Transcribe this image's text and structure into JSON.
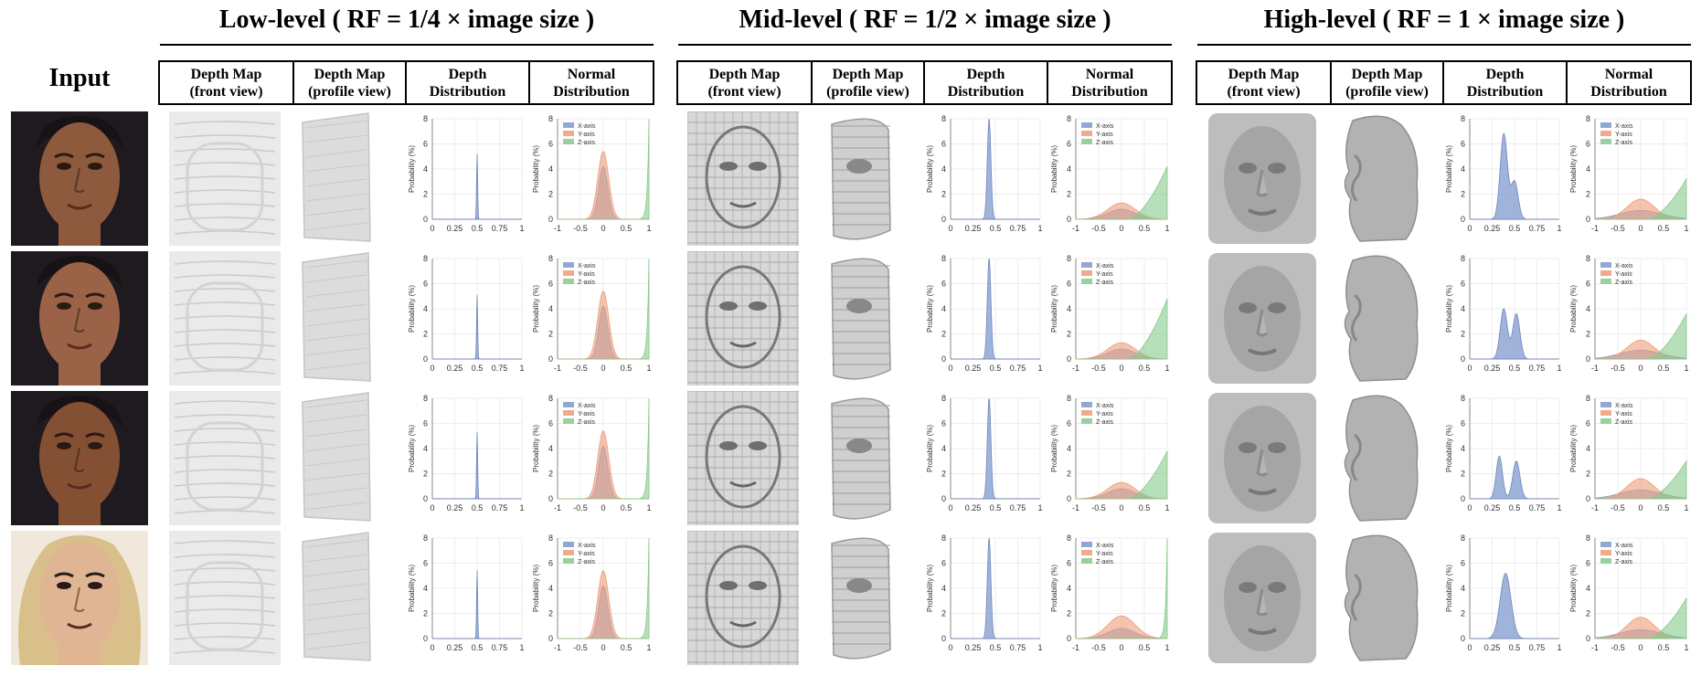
{
  "input_label": "Input",
  "groups": [
    {
      "id": "low",
      "title": "Low-level  ( RF = 1/4 × image size )"
    },
    {
      "id": "mid",
      "title": "Mid-level  ( RF = 1/2  × image size )"
    },
    {
      "id": "high",
      "title": "High-level  ( RF = 1 × image size )"
    }
  ],
  "column_headers": [
    {
      "line1": "Depth Map",
      "line2": "(front view)"
    },
    {
      "line1": "Depth Map",
      "line2": "(profile view)"
    },
    {
      "line1": "Depth",
      "line2": "Distribution"
    },
    {
      "line1": "Normal",
      "line2": "Distribution"
    }
  ],
  "plot_labels": {
    "ylabel": "Probability (%)",
    "depth_yticks": [
      "0",
      "2",
      "4",
      "6",
      "8"
    ],
    "depth_xticks": [
      "0",
      "0.25",
      "0.5",
      "0.75",
      "1"
    ],
    "normal_yticks": [
      "0",
      "2",
      "4",
      "6",
      "8"
    ],
    "normal_xticks": [
      "-1",
      "-0.5",
      "0",
      "0.5",
      "1"
    ],
    "legend": [
      "X-axis",
      "Y-axis",
      "Z-axis"
    ]
  },
  "colors": {
    "depth_hist": "#8fa6d4",
    "x_axis": "#7f98cc",
    "y_axis": "#ec9c78",
    "z_axis": "#86c98c",
    "skin_row1": "#8e5a3e",
    "skin_row2": "#9a6246",
    "skin_row3": "#845033",
    "skin_row4": "#e0b593"
  },
  "chart_data": [
    {
      "type": "area",
      "level": "low",
      "row": 1,
      "kind": "depth",
      "peaks": [
        {
          "mean": 0.5,
          "sd": 0.006,
          "peak": 5.2
        }
      ],
      "xlim": [
        0,
        1
      ],
      "ylim": [
        0,
        8
      ]
    },
    {
      "type": "area",
      "level": "low",
      "row": 1,
      "kind": "normal",
      "series": [
        {
          "name": "X-axis",
          "mean": 0,
          "sd": 0.1,
          "peak": 4.2
        },
        {
          "name": "Y-axis",
          "mean": 0,
          "sd": 0.12,
          "peak": 5.4
        },
        {
          "name": "Z-axis",
          "mode": 1,
          "peak": 8
        }
      ],
      "xlim": [
        -1,
        1
      ],
      "ylim": [
        0,
        8
      ]
    },
    {
      "type": "area",
      "level": "mid",
      "row": 1,
      "kind": "depth",
      "peaks": [
        {
          "mean": 0.43,
          "sd": 0.02,
          "peak": 8
        }
      ],
      "xlim": [
        0,
        1
      ],
      "ylim": [
        0,
        8
      ]
    },
    {
      "type": "area",
      "level": "mid",
      "row": 1,
      "kind": "normal",
      "series": [
        {
          "name": "X-axis",
          "mean": 0,
          "sd": 0.3,
          "peak": 0.8
        },
        {
          "name": "Y-axis",
          "mean": 0,
          "sd": 0.3,
          "peak": 1.3
        },
        {
          "name": "Z-axis",
          "mode": 1,
          "peak": 4.2
        }
      ],
      "xlim": [
        -1,
        1
      ],
      "ylim": [
        0,
        8
      ]
    },
    {
      "type": "area",
      "level": "high",
      "row": 1,
      "kind": "depth",
      "peaks": [
        {
          "mean": 0.38,
          "sd": 0.04,
          "peak": 6.8
        },
        {
          "mean": 0.5,
          "sd": 0.04,
          "peak": 3
        }
      ],
      "xlim": [
        0,
        1
      ],
      "ylim": [
        0,
        8
      ]
    },
    {
      "type": "area",
      "level": "high",
      "row": 1,
      "kind": "normal",
      "series": [
        {
          "name": "X-axis",
          "mean": 0,
          "sd": 0.45,
          "peak": 0.7
        },
        {
          "name": "Y-axis",
          "mean": 0,
          "sd": 0.3,
          "peak": 1.6
        },
        {
          "name": "Z-axis",
          "mode": 1,
          "peak": 3.2
        }
      ],
      "xlim": [
        -1,
        1
      ],
      "ylim": [
        0,
        8
      ]
    },
    {
      "type": "area",
      "level": "low",
      "row": 2,
      "kind": "depth",
      "peaks": [
        {
          "mean": 0.5,
          "sd": 0.006,
          "peak": 5.1
        }
      ],
      "xlim": [
        0,
        1
      ],
      "ylim": [
        0,
        8
      ]
    },
    {
      "type": "area",
      "level": "low",
      "row": 2,
      "kind": "normal",
      "series": [
        {
          "name": "X-axis",
          "mean": 0,
          "sd": 0.1,
          "peak": 4.2
        },
        {
          "name": "Y-axis",
          "mean": 0,
          "sd": 0.12,
          "peak": 5.4
        },
        {
          "name": "Z-axis",
          "mode": 1,
          "peak": 8
        }
      ],
      "xlim": [
        -1,
        1
      ],
      "ylim": [
        0,
        8
      ]
    },
    {
      "type": "area",
      "level": "mid",
      "row": 2,
      "kind": "depth",
      "peaks": [
        {
          "mean": 0.43,
          "sd": 0.02,
          "peak": 8
        }
      ],
      "xlim": [
        0,
        1
      ],
      "ylim": [
        0,
        8
      ]
    },
    {
      "type": "area",
      "level": "mid",
      "row": 2,
      "kind": "normal",
      "series": [
        {
          "name": "X-axis",
          "mean": 0,
          "sd": 0.3,
          "peak": 0.8
        },
        {
          "name": "Y-axis",
          "mean": 0,
          "sd": 0.3,
          "peak": 1.3
        },
        {
          "name": "Z-axis",
          "mode": 1,
          "peak": 4.8
        }
      ],
      "xlim": [
        -1,
        1
      ],
      "ylim": [
        0,
        8
      ]
    },
    {
      "type": "area",
      "level": "high",
      "row": 2,
      "kind": "depth",
      "peaks": [
        {
          "mean": 0.38,
          "sd": 0.04,
          "peak": 4
        },
        {
          "mean": 0.52,
          "sd": 0.04,
          "peak": 3.6
        }
      ],
      "xlim": [
        0,
        1
      ],
      "ylim": [
        0,
        8
      ]
    },
    {
      "type": "area",
      "level": "high",
      "row": 2,
      "kind": "normal",
      "series": [
        {
          "name": "X-axis",
          "mean": 0,
          "sd": 0.45,
          "peak": 0.7
        },
        {
          "name": "Y-axis",
          "mean": 0,
          "sd": 0.3,
          "peak": 1.5
        },
        {
          "name": "Z-axis",
          "mode": 1,
          "peak": 3.6
        }
      ],
      "xlim": [
        -1,
        1
      ],
      "ylim": [
        0,
        8
      ]
    },
    {
      "type": "area",
      "level": "low",
      "row": 3,
      "kind": "depth",
      "peaks": [
        {
          "mean": 0.5,
          "sd": 0.006,
          "peak": 5.3
        }
      ],
      "xlim": [
        0,
        1
      ],
      "ylim": [
        0,
        8
      ]
    },
    {
      "type": "area",
      "level": "low",
      "row": 3,
      "kind": "normal",
      "series": [
        {
          "name": "X-axis",
          "mean": 0,
          "sd": 0.1,
          "peak": 4.2
        },
        {
          "name": "Y-axis",
          "mean": 0,
          "sd": 0.12,
          "peak": 5.4
        },
        {
          "name": "Z-axis",
          "mode": 1,
          "peak": 8
        }
      ],
      "xlim": [
        -1,
        1
      ],
      "ylim": [
        0,
        8
      ]
    },
    {
      "type": "area",
      "level": "mid",
      "row": 3,
      "kind": "depth",
      "peaks": [
        {
          "mean": 0.43,
          "sd": 0.02,
          "peak": 8
        }
      ],
      "xlim": [
        0,
        1
      ],
      "ylim": [
        0,
        8
      ]
    },
    {
      "type": "area",
      "level": "mid",
      "row": 3,
      "kind": "normal",
      "series": [
        {
          "name": "X-axis",
          "mean": 0,
          "sd": 0.3,
          "peak": 0.8
        },
        {
          "name": "Y-axis",
          "mean": 0,
          "sd": 0.3,
          "peak": 1.3
        },
        {
          "name": "Z-axis",
          "mode": 1,
          "peak": 3.8
        }
      ],
      "xlim": [
        -1,
        1
      ],
      "ylim": [
        0,
        8
      ]
    },
    {
      "type": "area",
      "level": "high",
      "row": 3,
      "kind": "depth",
      "peaks": [
        {
          "mean": 0.33,
          "sd": 0.035,
          "peak": 3.4
        },
        {
          "mean": 0.52,
          "sd": 0.04,
          "peak": 3
        }
      ],
      "xlim": [
        0,
        1
      ],
      "ylim": [
        0,
        8
      ]
    },
    {
      "type": "area",
      "level": "high",
      "row": 3,
      "kind": "normal",
      "series": [
        {
          "name": "X-axis",
          "mean": 0,
          "sd": 0.45,
          "peak": 0.7
        },
        {
          "name": "Y-axis",
          "mean": 0,
          "sd": 0.3,
          "peak": 1.6
        },
        {
          "name": "Z-axis",
          "mode": 1,
          "peak": 3
        }
      ],
      "xlim": [
        -1,
        1
      ],
      "ylim": [
        0,
        8
      ]
    },
    {
      "type": "area",
      "level": "low",
      "row": 4,
      "kind": "depth",
      "peaks": [
        {
          "mean": 0.5,
          "sd": 0.006,
          "peak": 5.4
        }
      ],
      "xlim": [
        0,
        1
      ],
      "ylim": [
        0,
        8
      ]
    },
    {
      "type": "area",
      "level": "low",
      "row": 4,
      "kind": "normal",
      "series": [
        {
          "name": "X-axis",
          "mean": 0,
          "sd": 0.1,
          "peak": 4.2
        },
        {
          "name": "Y-axis",
          "mean": 0,
          "sd": 0.12,
          "peak": 5.4
        },
        {
          "name": "Z-axis",
          "mode": 1,
          "peak": 8
        }
      ],
      "xlim": [
        -1,
        1
      ],
      "ylim": [
        0,
        8
      ]
    },
    {
      "type": "area",
      "level": "mid",
      "row": 4,
      "kind": "depth",
      "peaks": [
        {
          "mean": 0.43,
          "sd": 0.02,
          "peak": 8
        }
      ],
      "xlim": [
        0,
        1
      ],
      "ylim": [
        0,
        8
      ]
    },
    {
      "type": "area",
      "level": "mid",
      "row": 4,
      "kind": "normal",
      "series": [
        {
          "name": "X-axis",
          "mean": 0,
          "sd": 0.3,
          "peak": 0.8
        },
        {
          "name": "Y-axis",
          "mean": 0,
          "sd": 0.3,
          "peak": 1.8
        },
        {
          "name": "Z-axis",
          "mode": 1,
          "peak": 8
        }
      ],
      "xlim": [
        -1,
        1
      ],
      "ylim": [
        0,
        8
      ]
    },
    {
      "type": "area",
      "level": "high",
      "row": 4,
      "kind": "depth",
      "peaks": [
        {
          "mean": 0.4,
          "sd": 0.06,
          "peak": 5.2
        }
      ],
      "xlim": [
        0,
        1
      ],
      "ylim": [
        0,
        8
      ]
    },
    {
      "type": "area",
      "level": "high",
      "row": 4,
      "kind": "normal",
      "series": [
        {
          "name": "X-axis",
          "mean": 0,
          "sd": 0.45,
          "peak": 0.7
        },
        {
          "name": "Y-axis",
          "mean": 0,
          "sd": 0.3,
          "peak": 1.7
        },
        {
          "name": "Z-axis",
          "mode": 1,
          "peak": 3.2
        }
      ],
      "xlim": [
        -1,
        1
      ],
      "ylim": [
        0,
        8
      ]
    }
  ]
}
